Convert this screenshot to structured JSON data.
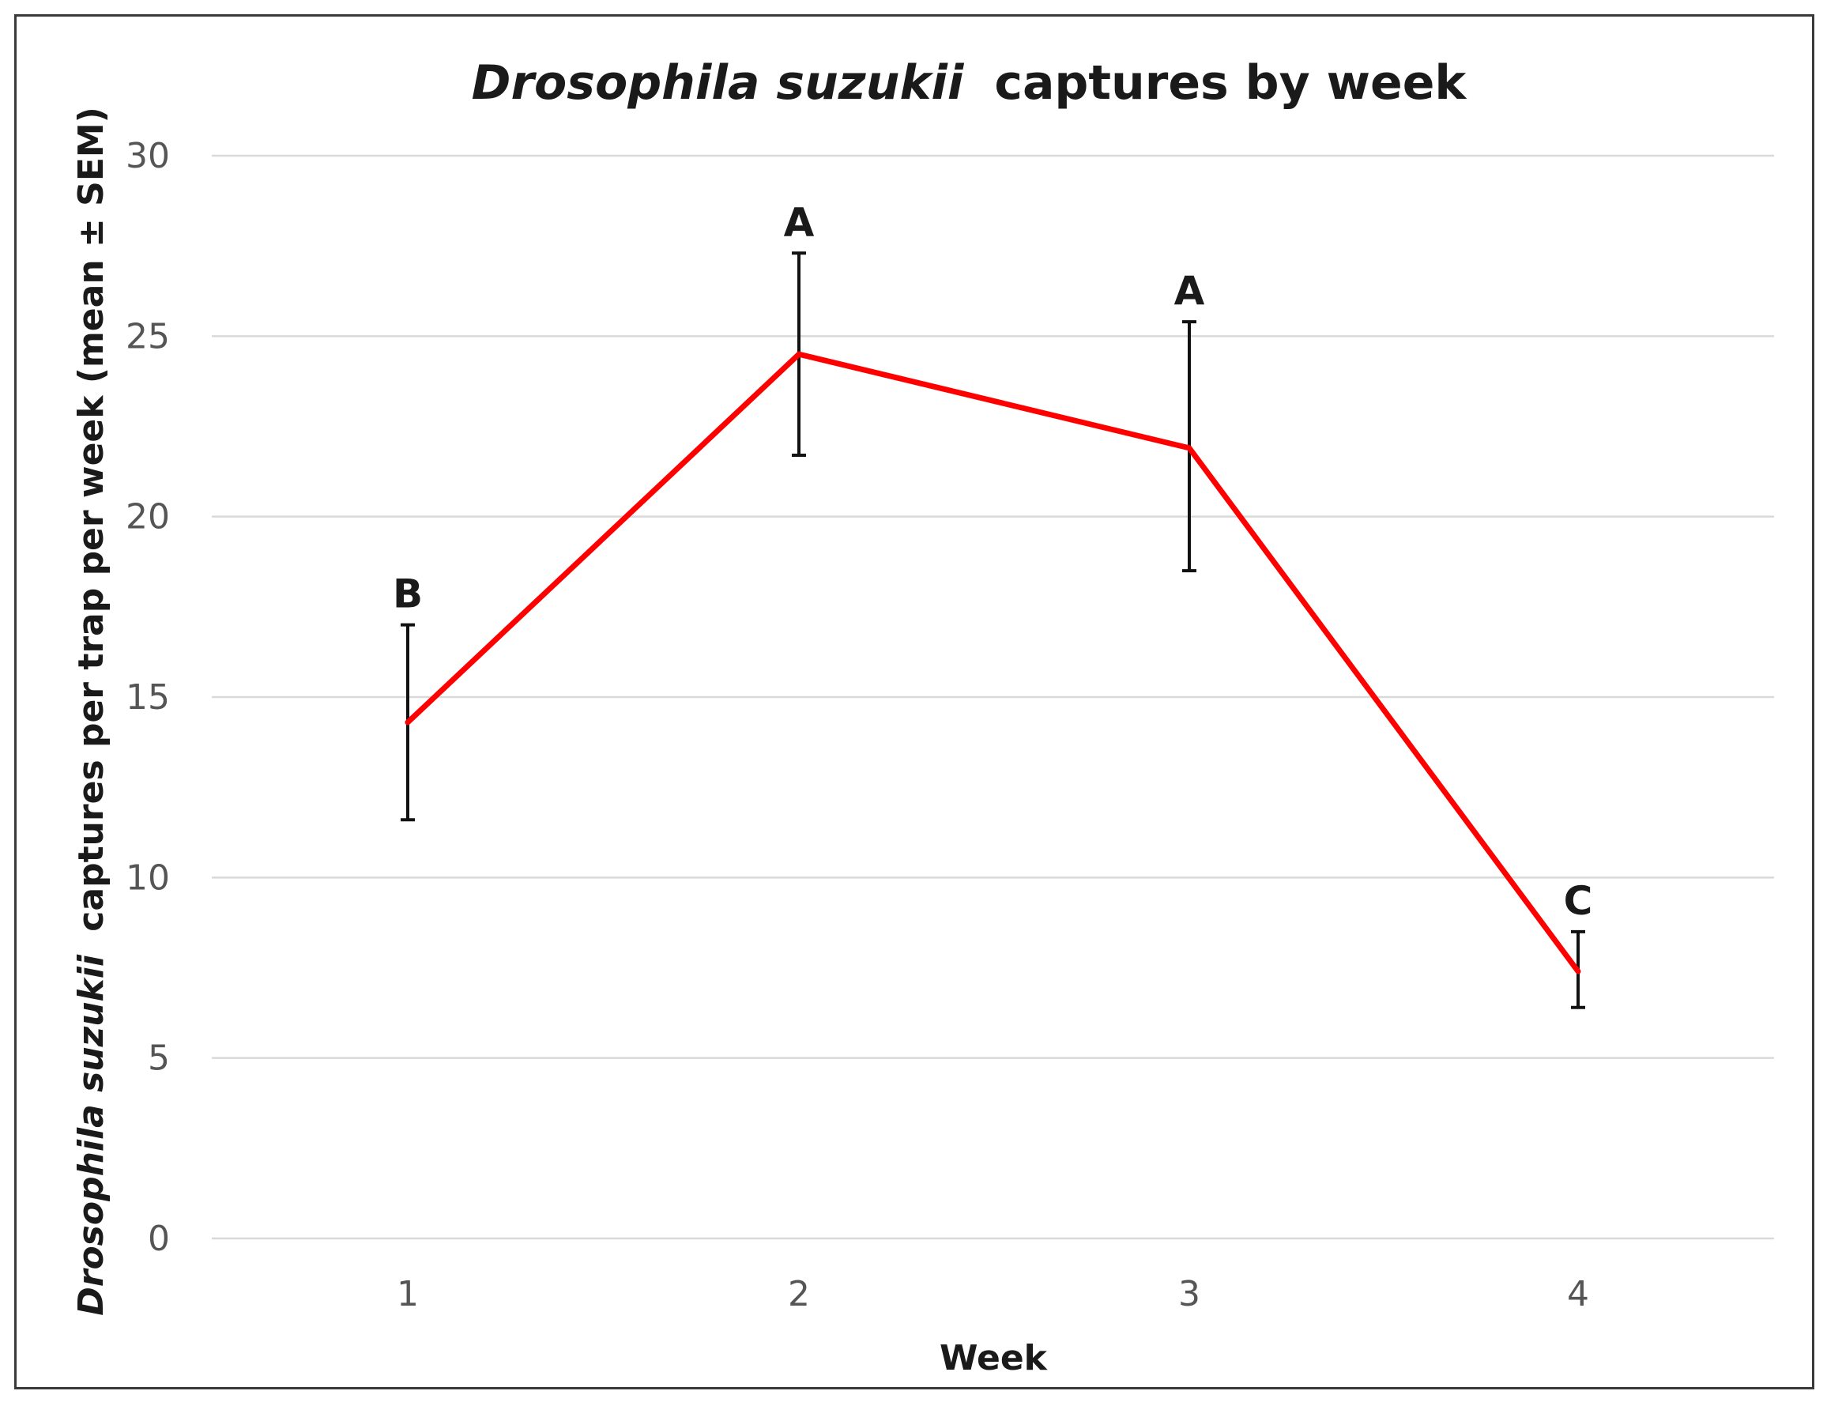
{
  "chart_data": {
    "type": "line",
    "title": {
      "italic": "Drosophila suzukii",
      "rest": "captures by week"
    },
    "xlabel": "Week",
    "ylabel": {
      "italic": "Drosophila suzukii",
      "rest": "captures per trap per week (mean ± SEM)"
    },
    "x": [
      1,
      2,
      3,
      4
    ],
    "categories": [
      "1",
      "2",
      "3",
      "4"
    ],
    "ylim": [
      0,
      30
    ],
    "yticks": [
      0,
      5,
      10,
      15,
      20,
      25,
      30
    ],
    "ytick_labels": [
      "0",
      "5",
      "10",
      "15",
      "20",
      "25",
      "30"
    ],
    "grid": true,
    "series": [
      {
        "values": [
          14.3,
          24.5,
          21.9,
          7.4
        ],
        "error_upper": [
          17.0,
          27.3,
          25.4,
          8.5
        ],
        "error_lower": [
          11.6,
          21.7,
          18.5,
          6.4
        ],
        "labels": [
          "B",
          "A",
          "A",
          "C"
        ],
        "color": "#ff0000"
      }
    ]
  }
}
